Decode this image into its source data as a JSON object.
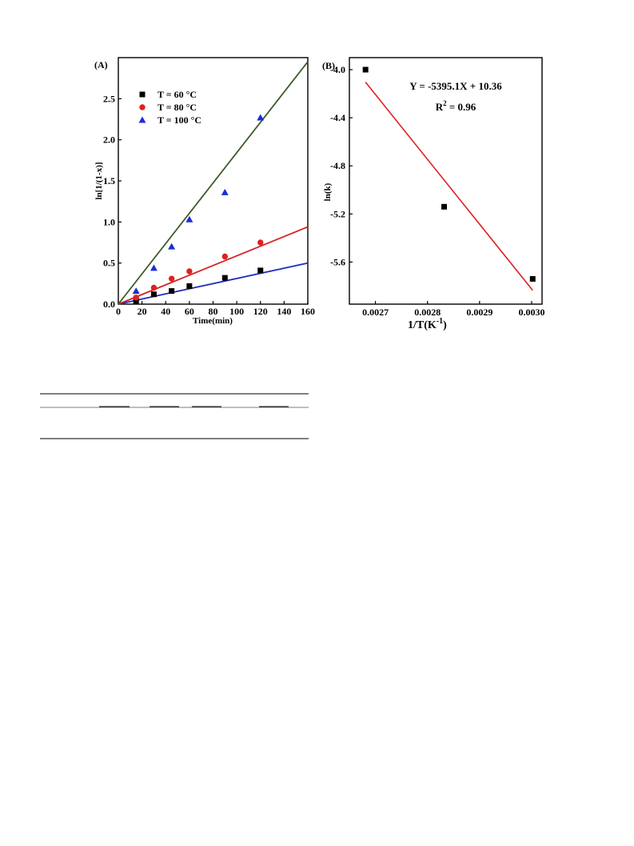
{
  "chart_data": [
    {
      "type": "scatter",
      "panel_label": "(A)",
      "title": "",
      "xlabel": "Time(min)",
      "ylabel": "ln[1/(1-x)]",
      "xlim": [
        0,
        160
      ],
      "ylim": [
        0,
        3.0
      ],
      "x_ticks": [
        "0",
        "20",
        "40",
        "60",
        "80",
        "100",
        "120",
        "140",
        "160"
      ],
      "y_ticks": [
        "0.0",
        "0.5",
        "1.0",
        "1.5",
        "2.0",
        "2.5"
      ],
      "legend_position": "top-left",
      "grid": false,
      "series": [
        {
          "name": "T = 60 °C",
          "marker": "square",
          "color": "#000000",
          "line_color": "#1f2fbf",
          "x": [
            15,
            30,
            45,
            60,
            90,
            120
          ],
          "y": [
            0.04,
            0.12,
            0.16,
            0.22,
            0.32,
            0.41
          ],
          "fit_line": {
            "x": [
              0,
              160
            ],
            "y": [
              0,
              0.5
            ]
          }
        },
        {
          "name": "T = 80 °C",
          "marker": "circle",
          "color": "#e02020",
          "line_color": "#d42020",
          "x": [
            15,
            30,
            45,
            60,
            90,
            120
          ],
          "y": [
            0.08,
            0.2,
            0.31,
            0.4,
            0.58,
            0.75
          ],
          "fit_line": {
            "x": [
              0,
              160
            ],
            "y": [
              0,
              0.94
            ]
          }
        },
        {
          "name": "T = 100 °C",
          "marker": "triangle",
          "color": "#1a2fd6",
          "line_color": "#3d5a2a",
          "x": [
            15,
            30,
            45,
            60,
            90,
            120
          ],
          "y": [
            0.16,
            0.44,
            0.7,
            1.03,
            1.36,
            2.27
          ],
          "fit_line": {
            "x": [
              0,
              160
            ],
            "y": [
              0,
              2.95
            ]
          }
        }
      ]
    },
    {
      "type": "scatter",
      "panel_label": "(B)",
      "title": "",
      "xlabel": "1/T(K",
      "xlabel_sup": "-1",
      "xlabel_end": ")",
      "ylabel": "ln(k)",
      "xlim": [
        0.00265,
        0.00302
      ],
      "ylim": [
        -5.95,
        -3.9
      ],
      "x_ticks": [
        "0.0027",
        "0.0028",
        "0.0029",
        "0.0030"
      ],
      "y_ticks": [
        "-4.0",
        "-4.4",
        "-4.8",
        "-5.2",
        "-5.6"
      ],
      "annotation_equation": "Y = -5395.1X + 10.36",
      "annotation_r2_prefix": "R",
      "annotation_r2_sup": "2",
      "annotation_r2_suffix": " = 0.96",
      "grid": false,
      "series": [
        {
          "marker": "square",
          "color": "#000000",
          "line_color": "#e02020",
          "x": [
            0.002681,
            0.002832,
            0.003002
          ],
          "y": [
            -4.0,
            -5.14,
            -5.74
          ],
          "fit_line": {
            "x": [
              0.002681,
              0.003002
            ],
            "y": [
              -4.104,
              -5.835
            ]
          }
        }
      ]
    }
  ]
}
